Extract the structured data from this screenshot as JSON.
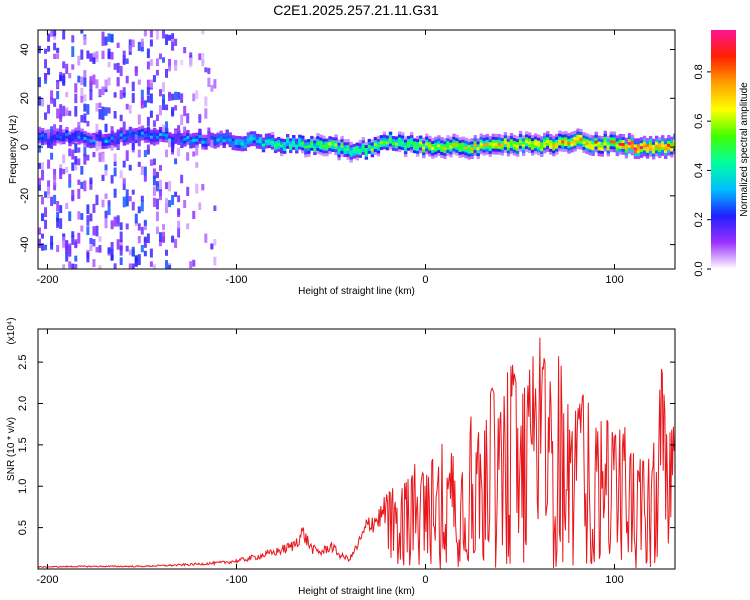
{
  "chart_data": [
    {
      "type": "heatmap",
      "title": "C2E1.2025.257.21.11.G31",
      "xlabel": "Height of straight line (km)",
      "ylabel": "Frequency (Hz)",
      "xlim": [
        -205,
        132
      ],
      "ylim": [
        -50,
        48
      ],
      "x_ticks": [
        -200,
        -100,
        0,
        100
      ],
      "x_tick_labels": [
        "-200",
        "-100",
        "0",
        "100"
      ],
      "y_ticks": [
        -40,
        -20,
        0,
        20,
        40
      ],
      "y_tick_labels": [
        "-40",
        "-20",
        "0",
        "20",
        "40"
      ],
      "colorbar": {
        "label": "Normalized spectral amplitude",
        "range": [
          0,
          0.97
        ],
        "ticks": [
          0.0,
          0.2,
          0.4,
          0.6,
          0.8
        ],
        "tick_labels": [
          "0.0",
          "0.2",
          "0.4",
          "0.6",
          "0.8"
        ],
        "colors": [
          "#ffffff",
          "#9b30ff",
          "#2020ff",
          "#00c0ff",
          "#00ffa0",
          "#40ff00",
          "#ffff00",
          "#ffa000",
          "#ff2000",
          "#ff1493"
        ]
      },
      "ridge": {
        "x": [
          -190,
          -170,
          -150,
          -130,
          -110,
          -90,
          -70,
          -50,
          -40,
          -30,
          -20,
          -10,
          0,
          20,
          40,
          60,
          80,
          100,
          110,
          120,
          130
        ],
        "frequency": [
          4,
          3,
          5,
          3,
          3,
          2,
          1,
          0,
          -2,
          -1,
          2,
          1,
          0,
          0,
          1,
          1,
          2,
          1,
          0,
          0,
          0
        ],
        "amplitude": [
          0.25,
          0.3,
          0.28,
          0.3,
          0.3,
          0.38,
          0.45,
          0.55,
          0.45,
          0.5,
          0.5,
          0.5,
          0.6,
          0.62,
          0.65,
          0.68,
          0.72,
          0.75,
          0.9,
          0.85,
          0.8
        ]
      }
    },
    {
      "type": "line",
      "xlabel": "Height of straight line (km)",
      "ylabel": "SNR (10 * v/v)",
      "y_multiplier": "(x10⁴)",
      "xlim": [
        -205,
        132
      ],
      "ylim": [
        0,
        2.9
      ],
      "x_ticks": [
        -200,
        -100,
        0,
        100
      ],
      "x_tick_labels": [
        "-200",
        "-100",
        "0",
        "100"
      ],
      "y_ticks": [
        0.5,
        1.0,
        1.5,
        2.0,
        2.5
      ],
      "y_tick_labels": [
        "0.5",
        "1.0",
        "1.5",
        "2.0",
        "2.5"
      ],
      "color": "#e8161b",
      "series": [
        {
          "name": "SNR",
          "x": [
            -205,
            -180,
            -150,
            -130,
            -110,
            -100,
            -90,
            -80,
            -70,
            -65,
            -60,
            -55,
            -50,
            -45,
            -40,
            -35,
            -30,
            -25,
            -20,
            -15,
            -10,
            -5,
            0,
            5,
            10,
            15,
            20,
            25,
            30,
            35,
            40,
            45,
            50,
            55,
            60,
            65,
            70,
            75,
            80,
            85,
            90,
            95,
            100,
            105,
            110,
            115,
            120,
            125,
            128,
            132
          ],
          "y": [
            0.03,
            0.04,
            0.04,
            0.06,
            0.09,
            0.12,
            0.18,
            0.25,
            0.35,
            0.55,
            0.3,
            0.25,
            0.35,
            0.2,
            0.15,
            0.4,
            0.7,
            0.75,
            0.95,
            1.0,
            1.05,
            1.3,
            1.1,
            1.4,
            1.55,
            1.35,
            1.6,
            1.9,
            1.5,
            2.2,
            1.9,
            2.6,
            2.0,
            2.4,
            2.85,
            2.3,
            2.7,
            2.0,
            1.9,
            2.2,
            1.7,
            1.85,
            1.6,
            1.75,
            1.4,
            1.3,
            1.35,
            2.45,
            1.6,
            1.75
          ]
        }
      ]
    }
  ]
}
